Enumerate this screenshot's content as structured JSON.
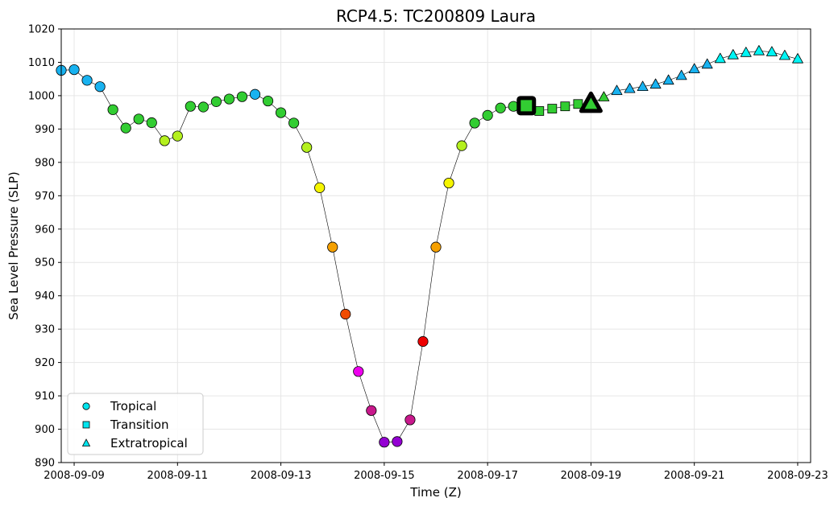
{
  "chart_data": {
    "type": "scatter",
    "title": "RCP4.5: TC200809 Laura",
    "xlabel": "Time (Z)",
    "ylabel": "Sea Level Pressure (SLP)",
    "x_is_date": true,
    "xlim": [
      "2008-09-08 18:00",
      "2008-09-23 06:00"
    ],
    "ylim": [
      890,
      1020
    ],
    "y_ticks": [
      890,
      900,
      910,
      920,
      930,
      940,
      950,
      960,
      970,
      980,
      990,
      1000,
      1010,
      1020
    ],
    "x_ticks": [
      "2008-09-09",
      "2008-09-11",
      "2008-09-13",
      "2008-09-15",
      "2008-09-17",
      "2008-09-19",
      "2008-09-21",
      "2008-09-23"
    ],
    "grid": true,
    "legend_position": "lower-left",
    "legend": [
      {
        "label": "Tropical",
        "marker": "circle"
      },
      {
        "label": "Transition",
        "marker": "square"
      },
      {
        "label": "Extratropical",
        "marker": "triangle"
      }
    ],
    "colors": {
      "legend_marker": "#00e5ee",
      "line": "#000000",
      "grid": "#e6e6e6",
      "blue": "#18b2f0",
      "green": "#32cd32",
      "lime": "#b4f01e",
      "yellow": "#f5f500",
      "orange": "#f5a000",
      "redorange": "#f04b00",
      "red": "#ee0000",
      "magenta": "#ee00ee",
      "violet": "#c8198c",
      "purple": "#9400d3",
      "cyan": "#00f5f5"
    },
    "series": [
      {
        "phase": "tropical",
        "marker": "circle",
        "points": [
          {
            "x": "2008-09-08 18:00",
            "y": 1007.6,
            "color": "blue"
          },
          {
            "x": "2008-09-09 00:00",
            "y": 1007.8,
            "color": "blue"
          },
          {
            "x": "2008-09-09 06:00",
            "y": 1004.6,
            "color": "blue"
          },
          {
            "x": "2008-09-09 12:00",
            "y": 1002.7,
            "color": "blue"
          },
          {
            "x": "2008-09-09 18:00",
            "y": 995.8,
            "color": "green"
          },
          {
            "x": "2008-09-10 00:00",
            "y": 990.3,
            "color": "green"
          },
          {
            "x": "2008-09-10 06:00",
            "y": 993.0,
            "color": "green"
          },
          {
            "x": "2008-09-10 12:00",
            "y": 991.9,
            "color": "green"
          },
          {
            "x": "2008-09-10 18:00",
            "y": 986.5,
            "color": "lime"
          },
          {
            "x": "2008-09-11 00:00",
            "y": 987.9,
            "color": "lime"
          },
          {
            "x": "2008-09-11 06:00",
            "y": 996.8,
            "color": "green"
          },
          {
            "x": "2008-09-11 12:00",
            "y": 996.6,
            "color": "green"
          },
          {
            "x": "2008-09-11 18:00",
            "y": 998.2,
            "color": "green"
          },
          {
            "x": "2008-09-12 00:00",
            "y": 999.0,
            "color": "green"
          },
          {
            "x": "2008-09-12 06:00",
            "y": 999.7,
            "color": "green"
          },
          {
            "x": "2008-09-12 12:00",
            "y": 1000.4,
            "color": "blue"
          },
          {
            "x": "2008-09-12 18:00",
            "y": 998.4,
            "color": "green"
          },
          {
            "x": "2008-09-13 00:00",
            "y": 994.9,
            "color": "green"
          },
          {
            "x": "2008-09-13 06:00",
            "y": 991.8,
            "color": "green"
          },
          {
            "x": "2008-09-13 12:00",
            "y": 984.5,
            "color": "lime"
          },
          {
            "x": "2008-09-13 18:00",
            "y": 972.4,
            "color": "yellow"
          },
          {
            "x": "2008-09-14 00:00",
            "y": 954.6,
            "color": "orange"
          },
          {
            "x": "2008-09-14 06:00",
            "y": 934.5,
            "color": "redorange"
          },
          {
            "x": "2008-09-14 12:00",
            "y": 917.3,
            "color": "magenta"
          },
          {
            "x": "2008-09-14 18:00",
            "y": 905.6,
            "color": "violet"
          },
          {
            "x": "2008-09-15 00:00",
            "y": 896.1,
            "color": "purple"
          },
          {
            "x": "2008-09-15 06:00",
            "y": 896.3,
            "color": "purple"
          },
          {
            "x": "2008-09-15 12:00",
            "y": 902.8,
            "color": "violet"
          },
          {
            "x": "2008-09-15 18:00",
            "y": 926.3,
            "color": "red"
          },
          {
            "x": "2008-09-16 00:00",
            "y": 954.6,
            "color": "orange"
          },
          {
            "x": "2008-09-16 06:00",
            "y": 973.8,
            "color": "yellow"
          },
          {
            "x": "2008-09-16 12:00",
            "y": 985.0,
            "color": "lime"
          },
          {
            "x": "2008-09-16 18:00",
            "y": 991.8,
            "color": "green"
          },
          {
            "x": "2008-09-17 00:00",
            "y": 994.1,
            "color": "green"
          },
          {
            "x": "2008-09-17 06:00",
            "y": 996.3,
            "color": "green"
          },
          {
            "x": "2008-09-17 12:00",
            "y": 996.8,
            "color": "green"
          }
        ]
      },
      {
        "phase": "transition",
        "marker": "square",
        "points": [
          {
            "x": "2008-09-17 18:00",
            "y": 997.0,
            "color": "green",
            "highlight": true
          },
          {
            "x": "2008-09-18 00:00",
            "y": 995.4,
            "color": "green"
          },
          {
            "x": "2008-09-18 06:00",
            "y": 996.1,
            "color": "green"
          },
          {
            "x": "2008-09-18 12:00",
            "y": 996.8,
            "color": "green"
          },
          {
            "x": "2008-09-18 18:00",
            "y": 997.5,
            "color": "green"
          }
        ]
      },
      {
        "phase": "extratropical",
        "marker": "triangle",
        "points": [
          {
            "x": "2008-09-19 00:00",
            "y": 997.6,
            "color": "green",
            "highlight": true
          },
          {
            "x": "2008-09-19 06:00",
            "y": 999.6,
            "color": "green"
          },
          {
            "x": "2008-09-19 12:00",
            "y": 1001.5,
            "color": "blue"
          },
          {
            "x": "2008-09-19 18:00",
            "y": 1002.1,
            "color": "blue"
          },
          {
            "x": "2008-09-20 00:00",
            "y": 1002.7,
            "color": "blue"
          },
          {
            "x": "2008-09-20 06:00",
            "y": 1003.4,
            "color": "blue"
          },
          {
            "x": "2008-09-20 12:00",
            "y": 1004.6,
            "color": "blue"
          },
          {
            "x": "2008-09-20 18:00",
            "y": 1006.0,
            "color": "blue"
          },
          {
            "x": "2008-09-21 00:00",
            "y": 1008.0,
            "color": "blue"
          },
          {
            "x": "2008-09-21 06:00",
            "y": 1009.4,
            "color": "blue"
          },
          {
            "x": "2008-09-21 12:00",
            "y": 1011.1,
            "color": "cyan"
          },
          {
            "x": "2008-09-21 18:00",
            "y": 1012.2,
            "color": "cyan"
          },
          {
            "x": "2008-09-22 00:00",
            "y": 1012.9,
            "color": "cyan"
          },
          {
            "x": "2008-09-22 06:00",
            "y": 1013.4,
            "color": "cyan"
          },
          {
            "x": "2008-09-22 12:00",
            "y": 1013.1,
            "color": "cyan"
          },
          {
            "x": "2008-09-22 18:00",
            "y": 1012.0,
            "color": "cyan"
          },
          {
            "x": "2008-09-23 00:00",
            "y": 1011.0,
            "color": "cyan"
          }
        ]
      }
    ]
  }
}
